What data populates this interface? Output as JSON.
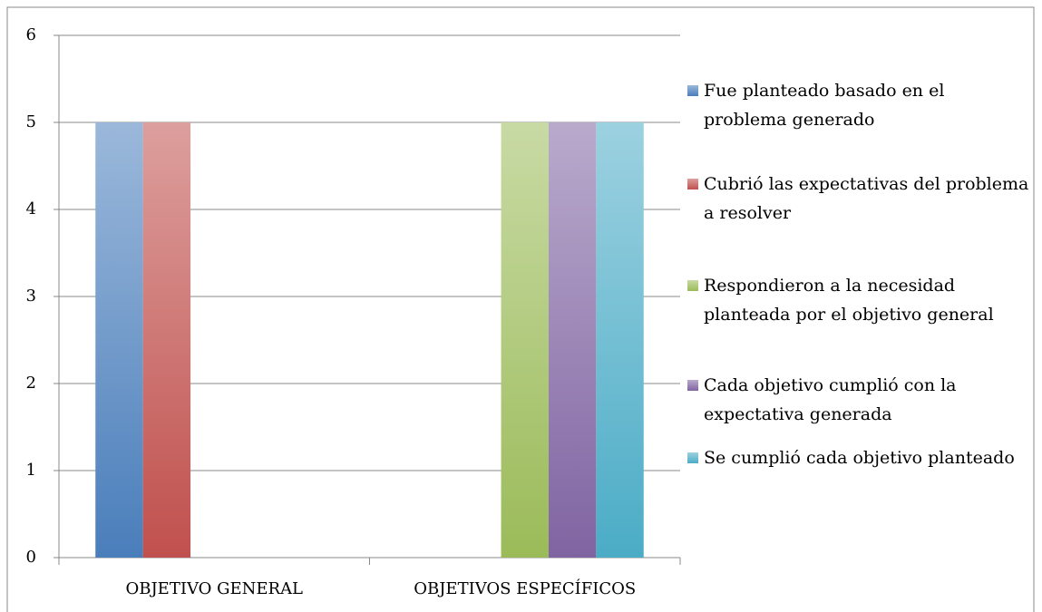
{
  "chart_data": {
    "type": "bar",
    "categories": [
      "OBJETIVO GENERAL",
      "OBJETIVOS ESPECÍFICOS"
    ],
    "series": [
      {
        "name": "Fue planteado basado en el problema generado",
        "color": "#4a7ebb",
        "values": [
          5,
          null
        ]
      },
      {
        "name": "Cubrió las expectativas del problema a resolver",
        "color": "#c0504d",
        "values": [
          5,
          null
        ]
      },
      {
        "name": "Respondieron a la necesidad planteada por el objetivo general",
        "color": "#9bbb59",
        "values": [
          null,
          5
        ]
      },
      {
        "name": "Cada objetivo cumplió con la expectativa generada",
        "color": "#8064a2",
        "values": [
          null,
          5
        ]
      },
      {
        "name": "Se cumplió cada objetivo planteado",
        "color": "#4bacc6",
        "values": [
          null,
          5
        ]
      }
    ],
    "ylim": [
      0,
      6
    ],
    "yticks": [
      0,
      1,
      2,
      3,
      4,
      5,
      6
    ],
    "grid": true,
    "legend": "right"
  }
}
